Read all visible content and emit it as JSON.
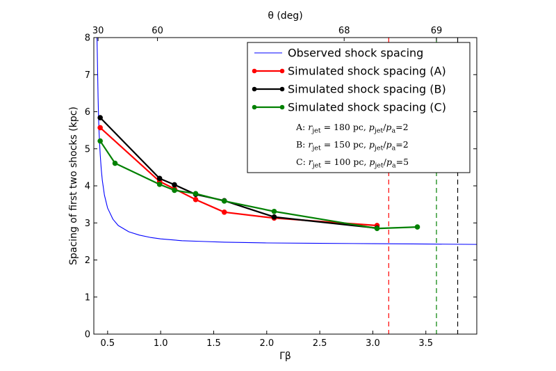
{
  "chart_data": {
    "type": "line",
    "xlabel": "Γβ",
    "ylabel": "Spacing of first two shocks (kpc)",
    "top_axis_label": "θ (deg)",
    "xlim": [
      0.37,
      3.98
    ],
    "ylim": [
      0,
      8
    ],
    "x_ticks": [
      "0.5",
      "1.0",
      "1.5",
      "2.0",
      "2.5",
      "3.0",
      "3.5"
    ],
    "x_tick_values": [
      0.5,
      1.0,
      1.5,
      2.0,
      2.5,
      3.0,
      3.5
    ],
    "y_ticks": [
      "0",
      "1",
      "2",
      "3",
      "4",
      "5",
      "6",
      "7",
      "8"
    ],
    "y_tick_values": [
      0,
      1,
      2,
      3,
      4,
      5,
      6,
      7,
      8
    ],
    "top_ticks": [
      {
        "label": "30",
        "x": 0.41
      },
      {
        "label": "60",
        "x": 0.97
      },
      {
        "label": "68",
        "x": 2.73
      },
      {
        "label": "69",
        "x": 3.6
      }
    ],
    "series": [
      {
        "name": "Observed shock spacing",
        "color": "#0000ff",
        "style": "curve",
        "markers": false,
        "x": [
          0.4,
          0.405,
          0.41,
          0.415,
          0.42,
          0.43,
          0.44,
          0.45,
          0.47,
          0.5,
          0.55,
          0.6,
          0.7,
          0.8,
          0.9,
          1.0,
          1.2,
          1.4,
          1.6,
          1.8,
          2.0,
          2.5,
          3.0,
          3.5,
          3.98
        ],
        "y": [
          8.0,
          7.2,
          6.4,
          5.8,
          5.4,
          4.85,
          4.45,
          4.15,
          3.75,
          3.4,
          3.1,
          2.93,
          2.76,
          2.67,
          2.61,
          2.57,
          2.52,
          2.5,
          2.48,
          2.47,
          2.46,
          2.45,
          2.44,
          2.43,
          2.42
        ]
      },
      {
        "name": "Simulated shock spacing (A)",
        "color": "#ff0000",
        "markers": true,
        "x": [
          0.43,
          0.99,
          1.13,
          1.33,
          1.6,
          2.07,
          3.04
        ],
        "y": [
          5.57,
          4.12,
          3.92,
          3.63,
          3.29,
          3.13,
          2.93
        ]
      },
      {
        "name": "Simulated shock spacing (B)",
        "color": "#000000",
        "markers": true,
        "x": [
          0.43,
          0.99,
          1.13,
          1.33,
          1.6,
          2.07,
          3.04
        ],
        "y": [
          5.84,
          4.2,
          4.03,
          3.77,
          3.6,
          3.16,
          2.86
        ]
      },
      {
        "name": "Simulated shock spacing (C)",
        "color": "#008000",
        "markers": true,
        "x": [
          0.43,
          0.57,
          0.99,
          1.13,
          1.33,
          1.6,
          2.07,
          3.04,
          3.42
        ],
        "y": [
          5.21,
          4.61,
          4.04,
          3.88,
          3.79,
          3.59,
          3.31,
          2.85,
          2.89
        ]
      }
    ],
    "vlines": [
      {
        "x": 3.15,
        "color": "#ff0000",
        "style": "dashed"
      },
      {
        "x": 3.6,
        "color": "#008000",
        "style": "dashed"
      },
      {
        "x": 3.8,
        "color": "#000000",
        "style": "dashed"
      }
    ],
    "legend": {
      "position": "top-right",
      "notes": [
        {
          "prefix": "A: ",
          "r": "r",
          "r_sub": "jet",
          "r_value": " = 180 pc, ",
          "p": "p",
          "p_sub": "jet",
          "slash": "/",
          "p2": "p",
          "p2_sub": "a",
          "p_value": "=2"
        },
        {
          "prefix": "B: ",
          "r": "r",
          "r_sub": "jet",
          "r_value": " = 150 pc, ",
          "p": "p",
          "p_sub": "jet",
          "slash": "/",
          "p2": "p",
          "p2_sub": "a",
          "p_value": "=2"
        },
        {
          "prefix": "C: ",
          "r": "r",
          "r_sub": "jet",
          "r_value": " = 100 pc, ",
          "p": "p",
          "p_sub": "jet",
          "slash": "/",
          "p2": "p",
          "p2_sub": "a",
          "p_value": "=5"
        }
      ]
    },
    "grid": false
  }
}
